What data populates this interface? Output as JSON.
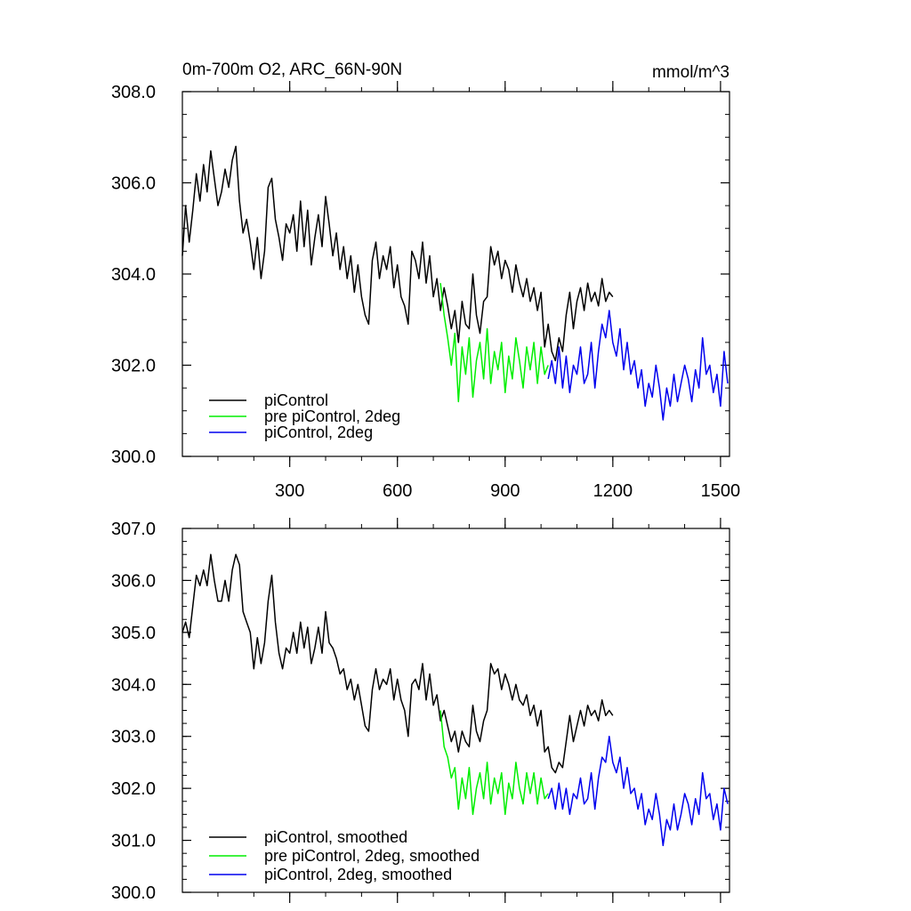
{
  "chart_data": [
    {
      "type": "line",
      "title_left": "0m-700m O2, ARC_66N-90N",
      "title_right": "mmol/m^3",
      "xlim": [
        1,
        1525
      ],
      "ylim": [
        300.0,
        308.0
      ],
      "yticks": [
        300.0,
        302.0,
        304.0,
        306.0,
        308.0
      ],
      "ytick_labels": [
        "300.0",
        "302.0",
        "304.0",
        "306.0",
        "308.0"
      ],
      "xticks": [
        300,
        600,
        900,
        1200,
        1500
      ],
      "xtick_labels": [
        "300",
        "600",
        "900",
        "1200",
        "1500"
      ],
      "legend_position": "bottom-left",
      "series": [
        {
          "name": "piControl",
          "color": "#000000",
          "x": [
            1,
            10,
            20,
            30,
            40,
            50,
            60,
            70,
            80,
            90,
            100,
            110,
            120,
            130,
            140,
            150,
            160,
            170,
            180,
            190,
            200,
            210,
            220,
            230,
            240,
            250,
            260,
            270,
            280,
            290,
            300,
            310,
            320,
            330,
            340,
            350,
            360,
            370,
            380,
            390,
            400,
            410,
            420,
            430,
            440,
            450,
            460,
            470,
            480,
            490,
            500,
            510,
            520,
            530,
            540,
            550,
            560,
            570,
            580,
            590,
            600,
            610,
            620,
            630,
            640,
            650,
            660,
            670,
            680,
            690,
            700,
            710,
            720,
            730,
            740,
            750,
            760,
            770,
            780,
            790,
            800,
            810,
            820,
            830,
            840,
            850,
            860,
            870,
            880,
            890,
            900,
            910,
            920,
            930,
            940,
            950,
            960,
            970,
            980,
            990,
            1000,
            1010,
            1020,
            1030,
            1040,
            1050,
            1060,
            1070,
            1080,
            1090,
            1100,
            1110,
            1120,
            1130,
            1140,
            1150,
            1160,
            1170,
            1180,
            1190,
            1200
          ],
          "y": [
            304.4,
            305.5,
            304.7,
            305.4,
            306.2,
            305.6,
            306.4,
            305.8,
            306.7,
            306.1,
            305.5,
            305.8,
            306.3,
            305.9,
            306.5,
            306.8,
            305.6,
            304.9,
            305.2,
            304.7,
            304.1,
            304.8,
            303.9,
            304.5,
            305.9,
            306.1,
            305.2,
            304.8,
            304.3,
            305.1,
            304.9,
            305.3,
            304.5,
            305.6,
            304.6,
            305.4,
            304.2,
            304.8,
            305.3,
            304.6,
            305.7,
            305.1,
            304.4,
            304.9,
            304.1,
            304.6,
            303.9,
            304.4,
            303.6,
            304.2,
            303.5,
            303.1,
            302.9,
            304.3,
            304.7,
            303.9,
            304.4,
            304.1,
            304.6,
            303.7,
            304.2,
            303.5,
            303.3,
            302.9,
            304.5,
            304.3,
            303.9,
            304.7,
            303.8,
            304.4,
            303.5,
            303.9,
            303.2,
            303.7,
            303.3,
            302.8,
            303.2,
            302.5,
            303.4,
            302.9,
            302.8,
            304.0,
            303.1,
            302.7,
            303.4,
            303.5,
            304.6,
            304.2,
            304.5,
            303.9,
            304.3,
            304.1,
            303.6,
            304.2,
            303.8,
            303.5,
            303.9,
            303.4,
            303.7,
            303.2,
            303.6,
            302.4,
            302.9,
            302.3,
            302.1,
            302.6,
            302.3,
            303.1,
            303.6,
            302.8,
            303.4,
            303.7,
            303.2,
            303.8,
            303.4,
            303.6,
            303.3,
            303.9,
            303.4,
            303.6,
            303.5
          ]
        },
        {
          "name": "pre piControl, 2deg",
          "color": "#00ee00",
          "x": [
            720,
            730,
            740,
            750,
            760,
            770,
            780,
            790,
            800,
            810,
            820,
            830,
            840,
            850,
            860,
            870,
            880,
            890,
            900,
            910,
            920,
            930,
            940,
            950,
            960,
            970,
            980,
            990,
            1000,
            1010,
            1020
          ],
          "y": [
            303.8,
            303.1,
            302.6,
            302.0,
            302.7,
            301.2,
            302.4,
            301.8,
            302.6,
            301.3,
            302.1,
            302.5,
            301.7,
            302.8,
            301.6,
            302.3,
            301.9,
            302.5,
            301.4,
            302.2,
            301.7,
            302.6,
            302.1,
            301.5,
            302.4,
            301.9,
            302.5,
            301.6,
            302.4,
            301.8,
            302.0
          ]
        },
        {
          "name": "piControl, 2deg",
          "color": "#0000ee",
          "x": [
            1020,
            1030,
            1040,
            1050,
            1060,
            1070,
            1080,
            1090,
            1100,
            1110,
            1120,
            1130,
            1140,
            1150,
            1160,
            1170,
            1180,
            1190,
            1200,
            1210,
            1220,
            1230,
            1240,
            1250,
            1260,
            1270,
            1280,
            1290,
            1300,
            1310,
            1320,
            1330,
            1340,
            1350,
            1360,
            1370,
            1380,
            1390,
            1400,
            1410,
            1420,
            1430,
            1440,
            1450,
            1460,
            1470,
            1480,
            1490,
            1500,
            1510,
            1520
          ],
          "y": [
            301.7,
            302.1,
            301.6,
            302.4,
            301.5,
            302.2,
            301.4,
            302.0,
            301.8,
            302.4,
            301.6,
            301.8,
            302.5,
            301.5,
            302.3,
            302.9,
            302.6,
            303.2,
            302.5,
            302.2,
            302.8,
            301.9,
            302.5,
            301.8,
            302.1,
            301.5,
            301.9,
            301.1,
            301.6,
            301.3,
            302.0,
            301.5,
            300.8,
            301.5,
            301.1,
            301.8,
            301.2,
            301.6,
            302.0,
            301.7,
            301.2,
            301.9,
            301.5,
            302.6,
            301.8,
            302.0,
            301.4,
            301.8,
            301.1,
            302.3,
            301.6
          ]
        }
      ]
    },
    {
      "type": "line",
      "xlim": [
        1,
        1525
      ],
      "ylim": [
        300.0,
        307.0
      ],
      "yticks": [
        300.0,
        301.0,
        302.0,
        303.0,
        304.0,
        305.0,
        306.0,
        307.0
      ],
      "ytick_labels": [
        "300.0",
        "301.0",
        "302.0",
        "303.0",
        "304.0",
        "305.0",
        "306.0",
        "307.0"
      ],
      "xticks": [
        300,
        600,
        900,
        1200,
        1500
      ],
      "legend_position": "bottom-left",
      "series": [
        {
          "name": "piControl, smoothed",
          "color": "#000000",
          "x": [
            1,
            10,
            20,
            30,
            40,
            50,
            60,
            70,
            80,
            90,
            100,
            110,
            120,
            130,
            140,
            150,
            160,
            170,
            180,
            190,
            200,
            210,
            220,
            230,
            240,
            250,
            260,
            270,
            280,
            290,
            300,
            310,
            320,
            330,
            340,
            350,
            360,
            370,
            380,
            390,
            400,
            410,
            420,
            430,
            440,
            450,
            460,
            470,
            480,
            490,
            500,
            510,
            520,
            530,
            540,
            550,
            560,
            570,
            580,
            590,
            600,
            610,
            620,
            630,
            640,
            650,
            660,
            670,
            680,
            690,
            700,
            710,
            720,
            730,
            740,
            750,
            760,
            770,
            780,
            790,
            800,
            810,
            820,
            830,
            840,
            850,
            860,
            870,
            880,
            890,
            900,
            910,
            920,
            930,
            940,
            950,
            960,
            970,
            980,
            990,
            1000,
            1010,
            1020,
            1030,
            1040,
            1050,
            1060,
            1070,
            1080,
            1090,
            1100,
            1110,
            1120,
            1130,
            1140,
            1150,
            1160,
            1170,
            1180,
            1190,
            1200
          ],
          "y": [
            305.0,
            305.2,
            304.9,
            305.5,
            306.1,
            305.9,
            306.2,
            305.9,
            306.5,
            306.0,
            305.6,
            305.6,
            306.0,
            305.6,
            306.2,
            306.5,
            306.3,
            305.4,
            305.2,
            305.0,
            304.3,
            304.9,
            304.4,
            304.8,
            305.6,
            306.1,
            305.2,
            304.6,
            304.3,
            304.7,
            304.6,
            305.0,
            304.6,
            305.2,
            304.7,
            305.1,
            304.4,
            304.7,
            305.1,
            304.6,
            305.4,
            304.8,
            304.7,
            304.5,
            304.2,
            304.3,
            303.9,
            304.1,
            303.7,
            304.0,
            303.6,
            303.2,
            303.1,
            303.9,
            304.3,
            303.9,
            304.1,
            304.0,
            304.3,
            303.7,
            304.1,
            303.7,
            303.5,
            303.0,
            304.0,
            304.1,
            303.9,
            304.4,
            303.7,
            304.2,
            303.6,
            303.8,
            303.3,
            303.5,
            303.2,
            302.9,
            303.1,
            302.7,
            303.1,
            302.9,
            302.8,
            303.6,
            303.1,
            302.9,
            303.3,
            303.5,
            304.4,
            304.2,
            304.3,
            303.9,
            304.2,
            304.0,
            303.7,
            304.0,
            303.7,
            303.6,
            303.8,
            303.4,
            303.6,
            303.2,
            303.5,
            302.7,
            302.8,
            302.4,
            302.3,
            302.5,
            302.4,
            302.9,
            303.4,
            302.9,
            303.2,
            303.5,
            303.2,
            303.6,
            303.4,
            303.5,
            303.3,
            303.7,
            303.4,
            303.5,
            303.4
          ]
        },
        {
          "name": "pre piControl, 2deg, smoothed",
          "color": "#00ee00",
          "x": [
            720,
            730,
            740,
            750,
            760,
            770,
            780,
            790,
            800,
            810,
            820,
            830,
            840,
            850,
            860,
            870,
            880,
            890,
            900,
            910,
            920,
            930,
            940,
            950,
            960,
            970,
            980,
            990,
            1000,
            1010,
            1020
          ],
          "y": [
            303.5,
            302.8,
            302.6,
            302.2,
            302.4,
            301.6,
            302.2,
            301.8,
            302.4,
            301.5,
            302.0,
            302.3,
            301.8,
            302.5,
            301.7,
            302.2,
            301.9,
            302.3,
            301.5,
            302.1,
            301.8,
            302.5,
            302.0,
            301.7,
            302.3,
            301.9,
            302.3,
            301.7,
            302.2,
            301.8,
            301.9
          ]
        },
        {
          "name": "piControl, 2deg, smoothed",
          "color": "#0000ee",
          "x": [
            1020,
            1030,
            1040,
            1050,
            1060,
            1070,
            1080,
            1090,
            1100,
            1110,
            1120,
            1130,
            1140,
            1150,
            1160,
            1170,
            1180,
            1190,
            1200,
            1210,
            1220,
            1230,
            1240,
            1250,
            1260,
            1270,
            1280,
            1290,
            1300,
            1310,
            1320,
            1330,
            1340,
            1350,
            1360,
            1370,
            1380,
            1390,
            1400,
            1410,
            1420,
            1430,
            1440,
            1450,
            1460,
            1470,
            1480,
            1490,
            1500,
            1510,
            1520
          ],
          "y": [
            301.8,
            302.0,
            301.6,
            302.1,
            301.6,
            302.0,
            301.5,
            301.9,
            301.8,
            302.2,
            301.7,
            301.8,
            302.3,
            301.6,
            302.2,
            302.6,
            302.5,
            303.0,
            302.5,
            302.3,
            302.6,
            302.0,
            302.4,
            301.9,
            302.0,
            301.6,
            301.9,
            301.3,
            301.6,
            301.4,
            301.9,
            301.5,
            300.9,
            301.4,
            301.2,
            301.7,
            301.2,
            301.5,
            301.9,
            301.7,
            301.3,
            301.8,
            301.5,
            302.3,
            301.8,
            301.9,
            301.4,
            301.7,
            301.2,
            302.0,
            301.7
          ]
        }
      ]
    }
  ]
}
